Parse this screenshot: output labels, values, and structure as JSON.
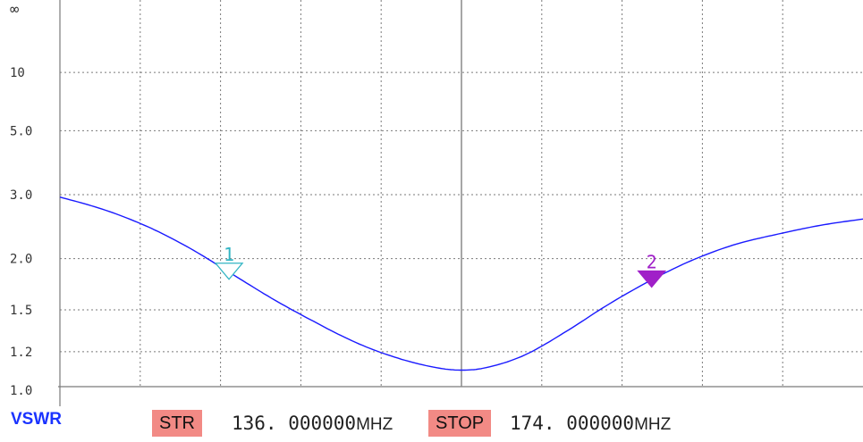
{
  "chart_data": {
    "type": "line",
    "title": "",
    "ylabel": "VSWR",
    "y_scale": "reflection-coefficient (VSWR)",
    "ytick_labels": [
      "∞",
      "10",
      "5.0",
      "3.0",
      "2.0",
      "1.5",
      "1.2",
      "1.0"
    ],
    "ytick_values": [
      1000,
      10,
      5.0,
      3.0,
      2.0,
      1.5,
      1.2,
      1.0
    ],
    "xlim_mhz": [
      136.0,
      174.0
    ],
    "x_divisions": 10,
    "grid": true,
    "series": [
      {
        "color": "#1a1aff",
        "x": [
          136.0,
          138.0,
          140.0,
          142.0,
          144.0,
          146.0,
          148.0,
          150.0,
          152.0,
          154.0,
          155.0,
          156.0,
          158.0,
          160.0,
          162.0,
          164.0,
          166.0,
          168.0,
          170.0,
          172.0,
          174.0
        ],
        "y": [
          2.95,
          2.72,
          2.45,
          2.15,
          1.85,
          1.6,
          1.41,
          1.26,
          1.16,
          1.1,
          1.09,
          1.1,
          1.18,
          1.34,
          1.55,
          1.77,
          1.99,
          2.18,
          2.32,
          2.45,
          2.55
        ]
      }
    ],
    "markers": [
      {
        "label": "1",
        "x": 144.0,
        "y": 1.85,
        "style": "outline",
        "color": "#33b5c4"
      },
      {
        "label": "2",
        "x": 164.0,
        "y": 1.77,
        "style": "filled",
        "color": "#a020c8"
      }
    ]
  },
  "footer": {
    "trace_label": "VSWR",
    "start_tag": "STR",
    "start_value": "136. 000000",
    "start_unit": "MHZ",
    "stop_tag": "STOP",
    "stop_value": "174. 000000",
    "stop_unit": "MHZ"
  },
  "colors": {
    "trace": "#1a1aff",
    "marker1": "#33b5c4",
    "marker2": "#a020c8",
    "tag_bg": "#f28a85",
    "grid": "#7a7a7a",
    "label": "#1a33ff"
  }
}
